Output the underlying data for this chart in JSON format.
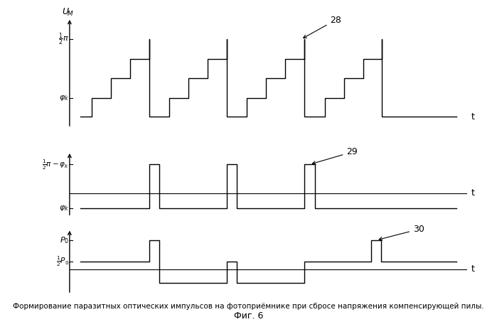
{
  "caption_line1": "Формирование паразитных оптических импульсов на фотоприёмнике при сбросе напряжения компенсирующей пилы.",
  "caption_line2": "Фиг. 6",
  "annotation1": "28",
  "annotation2": "29",
  "annotation3": "30",
  "colors": {
    "signal": "#000000",
    "background": "#ffffff"
  },
  "lw": 1.0,
  "fig_width": 6.99,
  "fig_height": 4.53,
  "dpi": 100
}
